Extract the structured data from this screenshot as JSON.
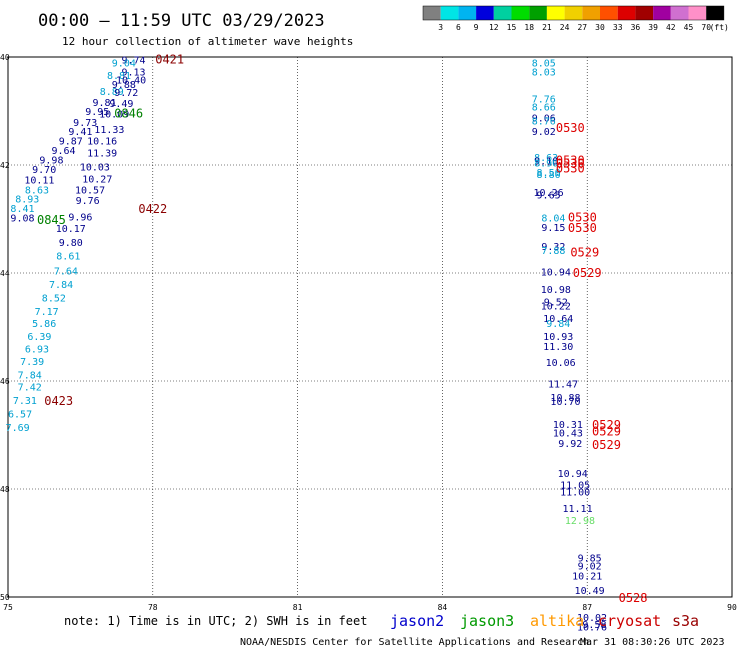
{
  "header": {
    "title": "00:00 – 11:59 UTC 03/29/2023",
    "subtitle": "12 hour collection of altimeter wave heights"
  },
  "colorbar": {
    "labels": [
      "3",
      "6",
      "9",
      "12",
      "15",
      "18",
      "21",
      "24",
      "27",
      "30",
      "33",
      "36",
      "39",
      "42",
      "45",
      "70"
    ],
    "unit": "(ft)",
    "colors": [
      "#808080",
      "#00e5e5",
      "#00b4f0",
      "#0000dd",
      "#00d0a0",
      "#00dd00",
      "#00a000",
      "#ffff00",
      "#f0d000",
      "#f0a000",
      "#ff5000",
      "#dd0000",
      "#a00000",
      "#a000a0",
      "#d070d0",
      "#ff90c8",
      "#000000"
    ]
  },
  "footer": {
    "note": "note: 1) Time is in UTC; 2) SWH is in feet",
    "satellites": [
      {
        "name": "jason2",
        "color": "#0000cc"
      },
      {
        "name": "jason3",
        "color": "#009900"
      },
      {
        "name": "altika",
        "color": "#ff9900"
      },
      {
        "name": "cryosat",
        "color": "#cc0000"
      },
      {
        "name": "s3a",
        "color": "#990000"
      }
    ],
    "credit": "NOAA/NESDIS Center for Satellite Applications and Research",
    "timestamp": "Mar 31 08:30:26 UTC 2023"
  },
  "chart_data": {
    "type": "scatter",
    "xlim": [
      75,
      90
    ],
    "ylim": [
      50,
      40
    ],
    "x_ticks": [
      "75",
      "78",
      "81",
      "84",
      "87",
      "90"
    ],
    "y_ticks": [
      "40",
      "42",
      "44",
      "46",
      "48",
      "50"
    ],
    "grid": true,
    "value_colors": {
      "navy": "#00008b",
      "cyan": "#00a0d0",
      "lgreen": "#66dd66"
    },
    "time_colors": {
      "s3a": "#8b0000",
      "jason3": "#008000",
      "cryosat": "#dd0000"
    },
    "points": [
      {
        "x": 77.6,
        "y": 40.05,
        "v": "9.74",
        "c": "navy"
      },
      {
        "x": 77.4,
        "y": 40.1,
        "v": "9.04",
        "c": "cyan"
      },
      {
        "x": 77.6,
        "y": 40.27,
        "v": "9.13",
        "c": "navy"
      },
      {
        "x": 77.3,
        "y": 40.33,
        "v": "8.81",
        "c": "cyan"
      },
      {
        "x": 77.55,
        "y": 40.42,
        "v": "10.40",
        "c": "navy"
      },
      {
        "x": 77.4,
        "y": 40.5,
        "v": "9.88",
        "c": "navy"
      },
      {
        "x": 77.15,
        "y": 40.63,
        "v": "8.89",
        "c": "cyan"
      },
      {
        "x": 77.45,
        "y": 40.65,
        "v": "9.72",
        "c": "navy"
      },
      {
        "x": 77.35,
        "y": 40.85,
        "v": "9.49",
        "c": "navy"
      },
      {
        "x": 77.0,
        "y": 40.83,
        "v": "9.81",
        "c": "navy"
      },
      {
        "x": 76.85,
        "y": 41.0,
        "v": "9.95",
        "c": "navy"
      },
      {
        "x": 77.2,
        "y": 41.05,
        "v": "10.09",
        "c": "navy"
      },
      {
        "x": 76.6,
        "y": 41.2,
        "v": "9.73",
        "c": "navy"
      },
      {
        "x": 76.5,
        "y": 41.37,
        "v": "9.41",
        "c": "navy"
      },
      {
        "x": 77.1,
        "y": 41.33,
        "v": "11.33",
        "c": "navy"
      },
      {
        "x": 76.3,
        "y": 41.55,
        "v": "9.87",
        "c": "navy"
      },
      {
        "x": 76.95,
        "y": 41.55,
        "v": "10.16",
        "c": "navy"
      },
      {
        "x": 76.15,
        "y": 41.72,
        "v": "9.64",
        "c": "navy"
      },
      {
        "x": 76.95,
        "y": 41.77,
        "v": "11.39",
        "c": "navy"
      },
      {
        "x": 75.9,
        "y": 41.9,
        "v": "9.98",
        "c": "navy"
      },
      {
        "x": 76.8,
        "y": 42.03,
        "v": "10.03",
        "c": "navy"
      },
      {
        "x": 75.75,
        "y": 42.07,
        "v": "9.70",
        "c": "navy"
      },
      {
        "x": 75.65,
        "y": 42.27,
        "v": "10.11",
        "c": "navy"
      },
      {
        "x": 76.85,
        "y": 42.25,
        "v": "10.27",
        "c": "navy"
      },
      {
        "x": 75.6,
        "y": 42.45,
        "v": "8.63",
        "c": "cyan"
      },
      {
        "x": 76.7,
        "y": 42.45,
        "v": "10.57",
        "c": "navy"
      },
      {
        "x": 75.4,
        "y": 42.62,
        "v": "8.93",
        "c": "cyan"
      },
      {
        "x": 76.65,
        "y": 42.65,
        "v": "9.76",
        "c": "navy"
      },
      {
        "x": 75.3,
        "y": 42.8,
        "v": "8.41",
        "c": "cyan"
      },
      {
        "x": 75.3,
        "y": 42.97,
        "v": "9.08",
        "c": "navy"
      },
      {
        "x": 76.5,
        "y": 42.95,
        "v": "9.96",
        "c": "navy"
      },
      {
        "x": 76.3,
        "y": 43.17,
        "v": "10.17",
        "c": "navy"
      },
      {
        "x": 76.3,
        "y": 43.43,
        "v": "9.80",
        "c": "navy"
      },
      {
        "x": 76.25,
        "y": 43.68,
        "v": "8.61",
        "c": "cyan"
      },
      {
        "x": 76.2,
        "y": 43.95,
        "v": "7.64",
        "c": "cyan"
      },
      {
        "x": 76.1,
        "y": 44.2,
        "v": "7.84",
        "c": "cyan"
      },
      {
        "x": 75.95,
        "y": 44.45,
        "v": "8.52",
        "c": "cyan"
      },
      {
        "x": 75.8,
        "y": 44.7,
        "v": "7.17",
        "c": "cyan"
      },
      {
        "x": 75.75,
        "y": 44.93,
        "v": "5.86",
        "c": "cyan"
      },
      {
        "x": 75.65,
        "y": 45.17,
        "v": "6.39",
        "c": "cyan"
      },
      {
        "x": 75.6,
        "y": 45.4,
        "v": "6.93",
        "c": "cyan"
      },
      {
        "x": 75.5,
        "y": 45.63,
        "v": "7.39",
        "c": "cyan"
      },
      {
        "x": 75.45,
        "y": 45.88,
        "v": "7.84",
        "c": "cyan"
      },
      {
        "x": 75.45,
        "y": 46.1,
        "v": "7.42",
        "c": "cyan"
      },
      {
        "x": 75.35,
        "y": 46.35,
        "v": "7.31",
        "c": "cyan"
      },
      {
        "x": 75.25,
        "y": 46.6,
        "v": "6.57",
        "c": "cyan"
      },
      {
        "x": 75.2,
        "y": 46.85,
        "v": "7.69",
        "c": "cyan"
      },
      {
        "x": 86.1,
        "y": 40.1,
        "v": "8.05",
        "c": "cyan"
      },
      {
        "x": 86.1,
        "y": 40.27,
        "v": "8.03",
        "c": "cyan"
      },
      {
        "x": 86.1,
        "y": 40.77,
        "v": "7.76",
        "c": "cyan"
      },
      {
        "x": 86.1,
        "y": 40.92,
        "v": "8.66",
        "c": "cyan"
      },
      {
        "x": 86.1,
        "y": 41.12,
        "v": "9.06",
        "c": "navy"
      },
      {
        "x": 86.1,
        "y": 41.18,
        "v": "8.76",
        "c": "cyan"
      },
      {
        "x": 86.1,
        "y": 41.37,
        "v": "9.02",
        "c": "navy"
      },
      {
        "x": 86.15,
        "y": 41.85,
        "v": "8.63",
        "c": "cyan"
      },
      {
        "x": 86.15,
        "y": 41.92,
        "v": "9.10",
        "c": "navy"
      },
      {
        "x": 86.15,
        "y": 41.95,
        "v": "8.90",
        "c": "cyan"
      },
      {
        "x": 86.2,
        "y": 42.13,
        "v": "8.50",
        "c": "cyan"
      },
      {
        "x": 86.2,
        "y": 42.17,
        "v": "8.80",
        "c": "cyan"
      },
      {
        "x": 86.2,
        "y": 42.5,
        "v": "10.26",
        "c": "navy"
      },
      {
        "x": 86.2,
        "y": 42.55,
        "v": "9.65",
        "c": "navy"
      },
      {
        "x": 86.3,
        "y": 42.97,
        "v": "8.04",
        "c": "cyan"
      },
      {
        "x": 86.3,
        "y": 43.15,
        "v": "9.15",
        "c": "navy"
      },
      {
        "x": 86.3,
        "y": 43.5,
        "v": "9.32",
        "c": "navy"
      },
      {
        "x": 86.3,
        "y": 43.57,
        "v": "7.88",
        "c": "cyan"
      },
      {
        "x": 86.35,
        "y": 43.97,
        "v": "10.94",
        "c": "navy"
      },
      {
        "x": 86.35,
        "y": 44.3,
        "v": "10.98",
        "c": "navy"
      },
      {
        "x": 86.35,
        "y": 44.53,
        "v": "9.52",
        "c": "navy"
      },
      {
        "x": 86.35,
        "y": 44.6,
        "v": "10.22",
        "c": "navy"
      },
      {
        "x": 86.4,
        "y": 44.83,
        "v": "10.64",
        "c": "navy"
      },
      {
        "x": 86.4,
        "y": 44.93,
        "v": "9.84",
        "c": "cyan"
      },
      {
        "x": 86.4,
        "y": 45.17,
        "v": "10.93",
        "c": "navy"
      },
      {
        "x": 86.4,
        "y": 45.35,
        "v": "11.30",
        "c": "navy"
      },
      {
        "x": 86.45,
        "y": 45.65,
        "v": "10.06",
        "c": "navy"
      },
      {
        "x": 86.5,
        "y": 46.05,
        "v": "11.47",
        "c": "navy"
      },
      {
        "x": 86.55,
        "y": 46.3,
        "v": "10.88",
        "c": "navy"
      },
      {
        "x": 86.55,
        "y": 46.37,
        "v": "10.70",
        "c": "navy"
      },
      {
        "x": 86.6,
        "y": 46.8,
        "v": "10.31",
        "c": "navy"
      },
      {
        "x": 86.6,
        "y": 46.95,
        "v": "10.43",
        "c": "navy"
      },
      {
        "x": 86.65,
        "y": 47.15,
        "v": "9.92",
        "c": "navy"
      },
      {
        "x": 86.7,
        "y": 47.7,
        "v": "10.94",
        "c": "navy"
      },
      {
        "x": 86.75,
        "y": 47.92,
        "v": "11.05",
        "c": "navy"
      },
      {
        "x": 86.75,
        "y": 48.05,
        "v": "11.00",
        "c": "navy"
      },
      {
        "x": 86.8,
        "y": 48.35,
        "v": "11.11",
        "c": "navy"
      },
      {
        "x": 86.85,
        "y": 48.57,
        "v": "12.98",
        "c": "lgreen"
      },
      {
        "x": 87.05,
        "y": 49.27,
        "v": "9.85",
        "c": "navy"
      },
      {
        "x": 87.05,
        "y": 49.42,
        "v": "9.02",
        "c": "navy"
      },
      {
        "x": 87.0,
        "y": 49.6,
        "v": "10.21",
        "c": "navy"
      },
      {
        "x": 87.05,
        "y": 49.87,
        "v": "10.49",
        "c": "navy"
      },
      {
        "x": 87.1,
        "y": 50.37,
        "v": "10.02",
        "c": "navy"
      },
      {
        "x": 87.15,
        "y": 50.5,
        "v": "9.58",
        "c": "navy"
      },
      {
        "x": 87.1,
        "y": 50.55,
        "v": "10.76",
        "c": "navy"
      }
    ],
    "times": [
      {
        "x": 78.35,
        "y": 40.03,
        "t": "0421",
        "c": "s3a"
      },
      {
        "x": 77.5,
        "y": 41.03,
        "t": "0846",
        "c": "jason3"
      },
      {
        "x": 78.0,
        "y": 42.8,
        "t": "0422",
        "c": "s3a"
      },
      {
        "x": 75.9,
        "y": 43.0,
        "t": "0845",
        "c": "jason3"
      },
      {
        "x": 76.05,
        "y": 46.35,
        "t": "0423",
        "c": "s3a"
      },
      {
        "x": 86.65,
        "y": 41.3,
        "t": "0530",
        "c": "cryosat"
      },
      {
        "x": 86.65,
        "y": 41.9,
        "t": "0530",
        "c": "cryosat"
      },
      {
        "x": 86.65,
        "y": 41.95,
        "t": "0530",
        "c": "cryosat"
      },
      {
        "x": 86.65,
        "y": 42.05,
        "t": "0530",
        "c": "cryosat"
      },
      {
        "x": 86.9,
        "y": 42.95,
        "t": "0530",
        "c": "cryosat"
      },
      {
        "x": 86.9,
        "y": 43.15,
        "t": "0530",
        "c": "cryosat"
      },
      {
        "x": 86.95,
        "y": 43.6,
        "t": "0529",
        "c": "cryosat"
      },
      {
        "x": 87.0,
        "y": 43.98,
        "t": "0529",
        "c": "cryosat"
      },
      {
        "x": 87.4,
        "y": 46.8,
        "t": "0529",
        "c": "cryosat"
      },
      {
        "x": 87.4,
        "y": 46.92,
        "t": "0529",
        "c": "cryosat"
      },
      {
        "x": 87.4,
        "y": 47.17,
        "t": "0529",
        "c": "cryosat"
      },
      {
        "x": 87.95,
        "y": 50.0,
        "t": "0528",
        "c": "cryosat"
      }
    ]
  }
}
